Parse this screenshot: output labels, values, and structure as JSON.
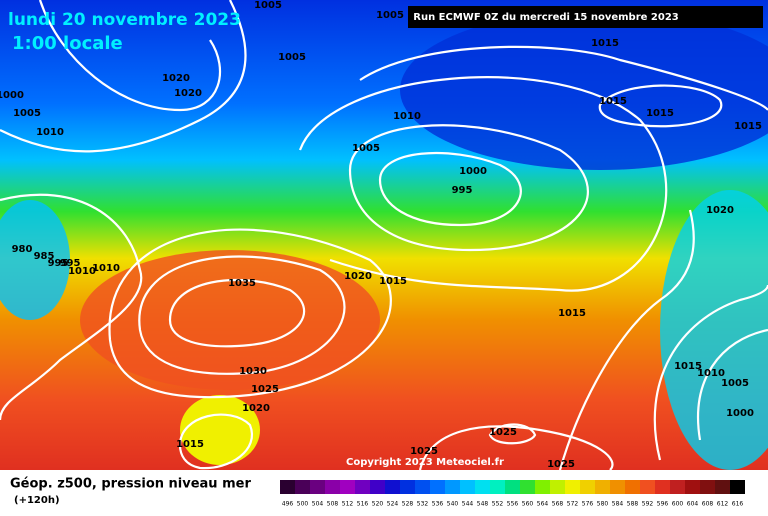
{
  "header": {
    "date": "lundi 20 novembre 2023",
    "time": "1:00 locale",
    "run": "Run ECMWF 0Z du mercredi 15 novembre 2023"
  },
  "isobar_labels": [
    "1005",
    "1005",
    "1015",
    "1005",
    "1020",
    "1020",
    "1000",
    "1005",
    "1010",
    "1015",
    "1015",
    "1015",
    "1010",
    "1005",
    "1000",
    "995",
    "1020",
    "980",
    "985",
    "995",
    "995",
    "1010",
    "1010",
    "1035",
    "1020",
    "1015",
    "1015",
    "1015",
    "1010",
    "1005",
    "1030",
    "1025",
    "1020",
    "1000",
    "1015",
    "1025",
    "1025",
    "1025"
  ],
  "copyright": "Copyright 2023 Meteociel.fr",
  "legend": {
    "title": "Géop. z500, pression niveau mer",
    "subtitle": "(+120h)",
    "scale": [
      "496",
      "500",
      "504",
      "508",
      "512",
      "516",
      "520",
      "524",
      "528",
      "532",
      "536",
      "540",
      "544",
      "548",
      "552",
      "556",
      "560",
      "564",
      "568",
      "572",
      "576",
      "580",
      "584",
      "588",
      "592",
      "596",
      "600",
      "604",
      "608",
      "612",
      "616"
    ],
    "colors": [
      "#2a0030",
      "#4a0058",
      "#6a0080",
      "#8a00a8",
      "#a000c0",
      "#7000c0",
      "#4000c8",
      "#1010d0",
      "#0030e0",
      "#0050f0",
      "#0070ff",
      "#0098ff",
      "#00c0ff",
      "#00e0f0",
      "#00f0c0",
      "#00e080",
      "#30e030",
      "#80f000",
      "#c0f000",
      "#f0f000",
      "#f0d000",
      "#f0b000",
      "#f09000",
      "#f07000",
      "#f05020",
      "#e03020",
      "#c02020",
      "#a01010",
      "#801010",
      "#601010",
      "#000000"
    ]
  }
}
